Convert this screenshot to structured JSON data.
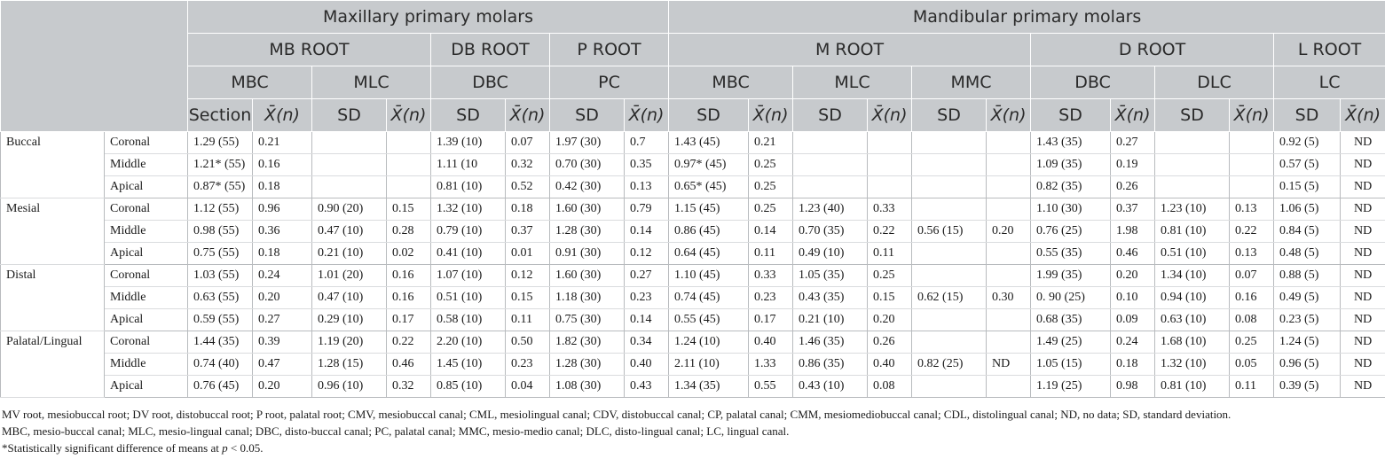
{
  "header": {
    "group1": "Maxillary primary molars",
    "group2": "Mandibular primary molars",
    "roots": [
      "MB ROOT",
      "DB ROOT",
      "P ROOT",
      "M ROOT",
      "D ROOT",
      "L ROOT"
    ],
    "canals": [
      "MBC",
      "MLC",
      "DBC",
      "PC",
      "MBC",
      "MLC",
      "MMC",
      "DBC",
      "DLC",
      "LC"
    ],
    "section_label": "Section",
    "mean_symbol": "X̄",
    "mean_suffix": "(n)",
    "sd_label": "SD"
  },
  "rows": [
    {
      "group": "Buccal",
      "section": "Coronal",
      "cells": [
        "1.29 (55)",
        "0.21",
        "",
        "",
        "1.39 (10)",
        "0.07",
        "1.97 (30)",
        "0.7",
        "1.43 (45)",
        "0.21",
        "",
        "",
        "",
        "",
        "1.43 (35)",
        "0.27",
        "",
        "",
        "0.92 (5)",
        "ND"
      ]
    },
    {
      "group": "",
      "section": "Middle",
      "cells": [
        "1.21* (55)",
        "0.16",
        "",
        "",
        "1.11 (10",
        "0.32",
        "0.70 (30)",
        "0.35",
        "0.97* (45)",
        "0.25",
        "",
        "",
        "",
        "",
        "1.09 (35)",
        "0.19",
        "",
        "",
        "0.57 (5)",
        "ND"
      ]
    },
    {
      "group": "",
      "section": "Apical",
      "cells": [
        "0.87* (55)",
        "0.18",
        "",
        "",
        "0.81 (10)",
        "0.52",
        "0.42 (30)",
        "0.13",
        "0.65* (45)",
        "0.25",
        "",
        "",
        "",
        "",
        "0.82 (35)",
        "0.26",
        "",
        "",
        "0.15 (5)",
        "ND"
      ]
    },
    {
      "group": "Mesial",
      "section": "Coronal",
      "cells": [
        "1.12 (55)",
        "0.96",
        "0.90 (20)",
        "0.15",
        "1.32 (10)",
        "0.18",
        "1.60 (30)",
        "0.79",
        "1.15 (45)",
        "0.25",
        "1.23 (40)",
        "0.33",
        "",
        "",
        "1.10 (30)",
        "0.37",
        "1.23 (10)",
        "0.13",
        "1.06 (5)",
        "ND"
      ]
    },
    {
      "group": "",
      "section": "Middle",
      "cells": [
        "0.98 (55)",
        "0.36",
        "0.47 (10)",
        "0.28",
        "0.79 (10)",
        "0.37",
        "1.28 (30)",
        "0.14",
        "0.86 (45)",
        "0.14",
        "0.70 (35)",
        "0.22",
        "0.56 (15)",
        "0.20",
        "0.76 (25)",
        "1.98",
        "0.81 (10)",
        "0.22",
        "0.84 (5)",
        "ND"
      ]
    },
    {
      "group": "",
      "section": "Apical",
      "cells": [
        "0.75 (55)",
        "0.18",
        "0.21 (10)",
        "0.02",
        "0.41 (10)",
        "0.01",
        "0.91 (30)",
        "0.12",
        "0.64 (45)",
        "0.11",
        "0.49 (10)",
        "0.11",
        "",
        "",
        "0.55 (35)",
        "0.46",
        "0.51 (10)",
        "0.13",
        "0.48 (5)",
        "ND"
      ]
    },
    {
      "group": "Distal",
      "section": "Coronal",
      "cells": [
        "1.03 (55)",
        "0.24",
        "1.01 (20)",
        "0.16",
        "1.07 (10)",
        "0.12",
        "1.60 (30)",
        "0.27",
        "1.10 (45)",
        "0.33",
        "1.05 (35)",
        "0.25",
        "",
        "",
        "1.99 (35)",
        "0.20",
        "1.34 (10)",
        "0.07",
        "0.88 (5)",
        "ND"
      ]
    },
    {
      "group": "",
      "section": "Middle",
      "cells": [
        "0.63 (55)",
        "0.20",
        "0.47 (10)",
        "0.16",
        "0.51 (10)",
        "0.15",
        "1.18 (30)",
        "0.23",
        "0.74 (45)",
        "0.23",
        "0.43 (35)",
        "0.15",
        "0.62 (15)",
        "0.30",
        "0. 90 (25)",
        "0.10",
        "0.94 (10)",
        "0.16",
        "0.49 (5)",
        "ND"
      ]
    },
    {
      "group": "",
      "section": "Apical",
      "cells": [
        "0.59 (55)",
        "0.27",
        "0.29 (10)",
        "0.17",
        "0.58 (10)",
        "0.11",
        "0.75 (30)",
        "0.14",
        "0.55 (45)",
        "0.17",
        "0.21 (10)",
        "0.20",
        "",
        "",
        "0.68 (35)",
        "0.09",
        "0.63 (10)",
        "0.08",
        "0.23 (5)",
        "ND"
      ]
    },
    {
      "group": "Palatal/Lingual",
      "section": "Coronal",
      "cells": [
        "1.44 (35)",
        "0.39",
        "1.19 (20)",
        "0.22",
        "2.20 (10)",
        "0.50",
        "1.82 (30)",
        "0.34",
        "1.24 (10)",
        "0.40",
        "1.46 (35)",
        "0.26",
        "",
        "",
        "1.49 (25)",
        "0.24",
        "1.68 (10)",
        "0.25",
        "1.24 (5)",
        "ND"
      ]
    },
    {
      "group": "",
      "section": "Middle",
      "cells": [
        "0.74 (40)",
        "0.47",
        "1.28 (15)",
        "0.46",
        "1.45 (10)",
        "0.23",
        "1.28 (30)",
        "0.40",
        "2.11 (10)",
        "1.33",
        "0.86 (35)",
        "0.40",
        "0.82 (25)",
        "ND",
        "1.05 (15)",
        "0.18",
        "1.32 (10)",
        "0.05",
        "0.96 (5)",
        "ND"
      ]
    },
    {
      "group": "",
      "section": "Apical",
      "cells": [
        "0.76 (45)",
        "0.20",
        "0.96 (10)",
        "0.32",
        "0.85 (10)",
        "0.04",
        "1.08 (30)",
        "0.43",
        "1.34 (35)",
        "0.55",
        "0.43 (10)",
        "0.08",
        "",
        "",
        "1.19 (25)",
        "0.98",
        "0.81 (10)",
        "0.11",
        "0.39 (5)",
        "ND"
      ]
    }
  ],
  "footnotes": [
    "MV root, mesiobuccal root; DV root, distobuccal root; P root, palatal root; CMV, mesiobuccal canal; CML, mesiolingual canal; CDV, distobuccal canal; CP, palatal canal; CMM, mesiomediobuccal canal; CDL, distolingual canal; ND, no data; SD, standard deviation.",
    "MBC, mesio-buccal canal; MLC, mesio-lingual canal; DBC, disto-buccal canal; PC, palatal canal; MMC, mesio-medio canal; DLC, disto-lingual canal; LC, lingual canal.",
    "*Statistically significant difference of means at p < 0.05."
  ]
}
